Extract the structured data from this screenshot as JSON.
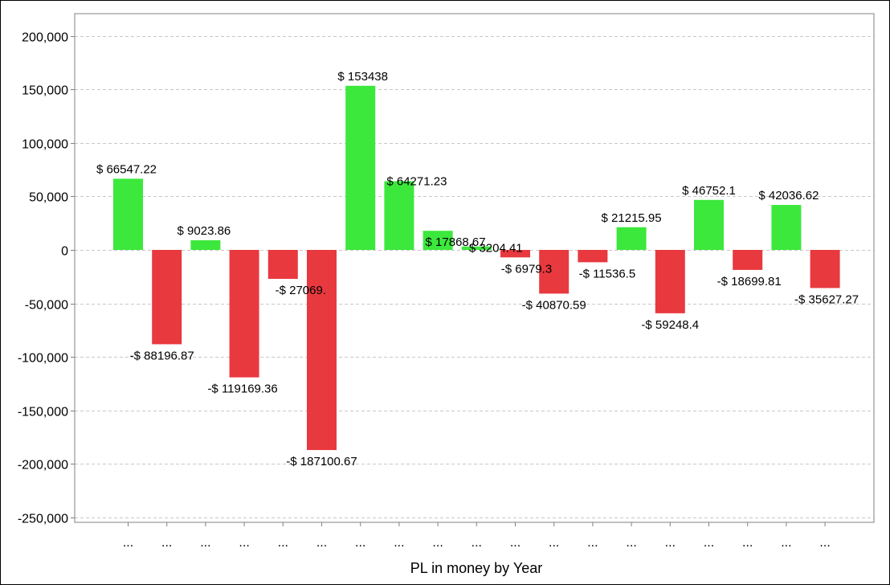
{
  "chart_data": {
    "type": "bar",
    "title": "",
    "xlabel": "PL in money by Year",
    "ylabel": "",
    "ylim": [
      -250000,
      200000
    ],
    "yticks": [
      200000,
      150000,
      100000,
      50000,
      0,
      -50000,
      -100000,
      -150000,
      -200000,
      -250000
    ],
    "ytick_labels": [
      "200,000",
      "150,000",
      "100,000",
      "50,000",
      "0",
      "-50,000",
      "-100,000",
      "-150,000",
      "-200,000",
      "-250,000"
    ],
    "grid": true,
    "legend": "none",
    "categories": [
      "...",
      "...",
      "...",
      "...",
      "...",
      "...",
      "...",
      "...",
      "...",
      "...",
      "...",
      "...",
      "...",
      "...",
      "...",
      "...",
      "...",
      "...",
      "..."
    ],
    "values": [
      66547.22,
      -88196.87,
      9023.86,
      -119169.36,
      -27069,
      -187100.67,
      153438,
      64271.23,
      17868.67,
      3204.41,
      -6979.3,
      -40870.59,
      -11536.5,
      21215.95,
      -59248.4,
      46752.1,
      -18699.81,
      42036.62,
      -35627.27
    ],
    "data_labels": [
      "$ 66547.22",
      "-$ 88196.87",
      "$ 9023.86",
      "-$ 119169.36",
      "-$ 27069.",
      "-$ 187100.67",
      "$ 153438",
      "$ 64271.23",
      "$ 17868.67",
      "$ 3204.41",
      "-$ 6979.3",
      "-$ 40870.59",
      "-$ 11536.5",
      "$ 21215.95",
      "-$ 59248.4",
      "$ 46752.1",
      "-$ 18699.81",
      "$ 42036.62",
      "-$ 35627.27"
    ],
    "colors": {
      "positive": "#3ce83c",
      "negative": "#e8393f",
      "grid": "#c8c8c8",
      "axis": "#808080"
    }
  }
}
